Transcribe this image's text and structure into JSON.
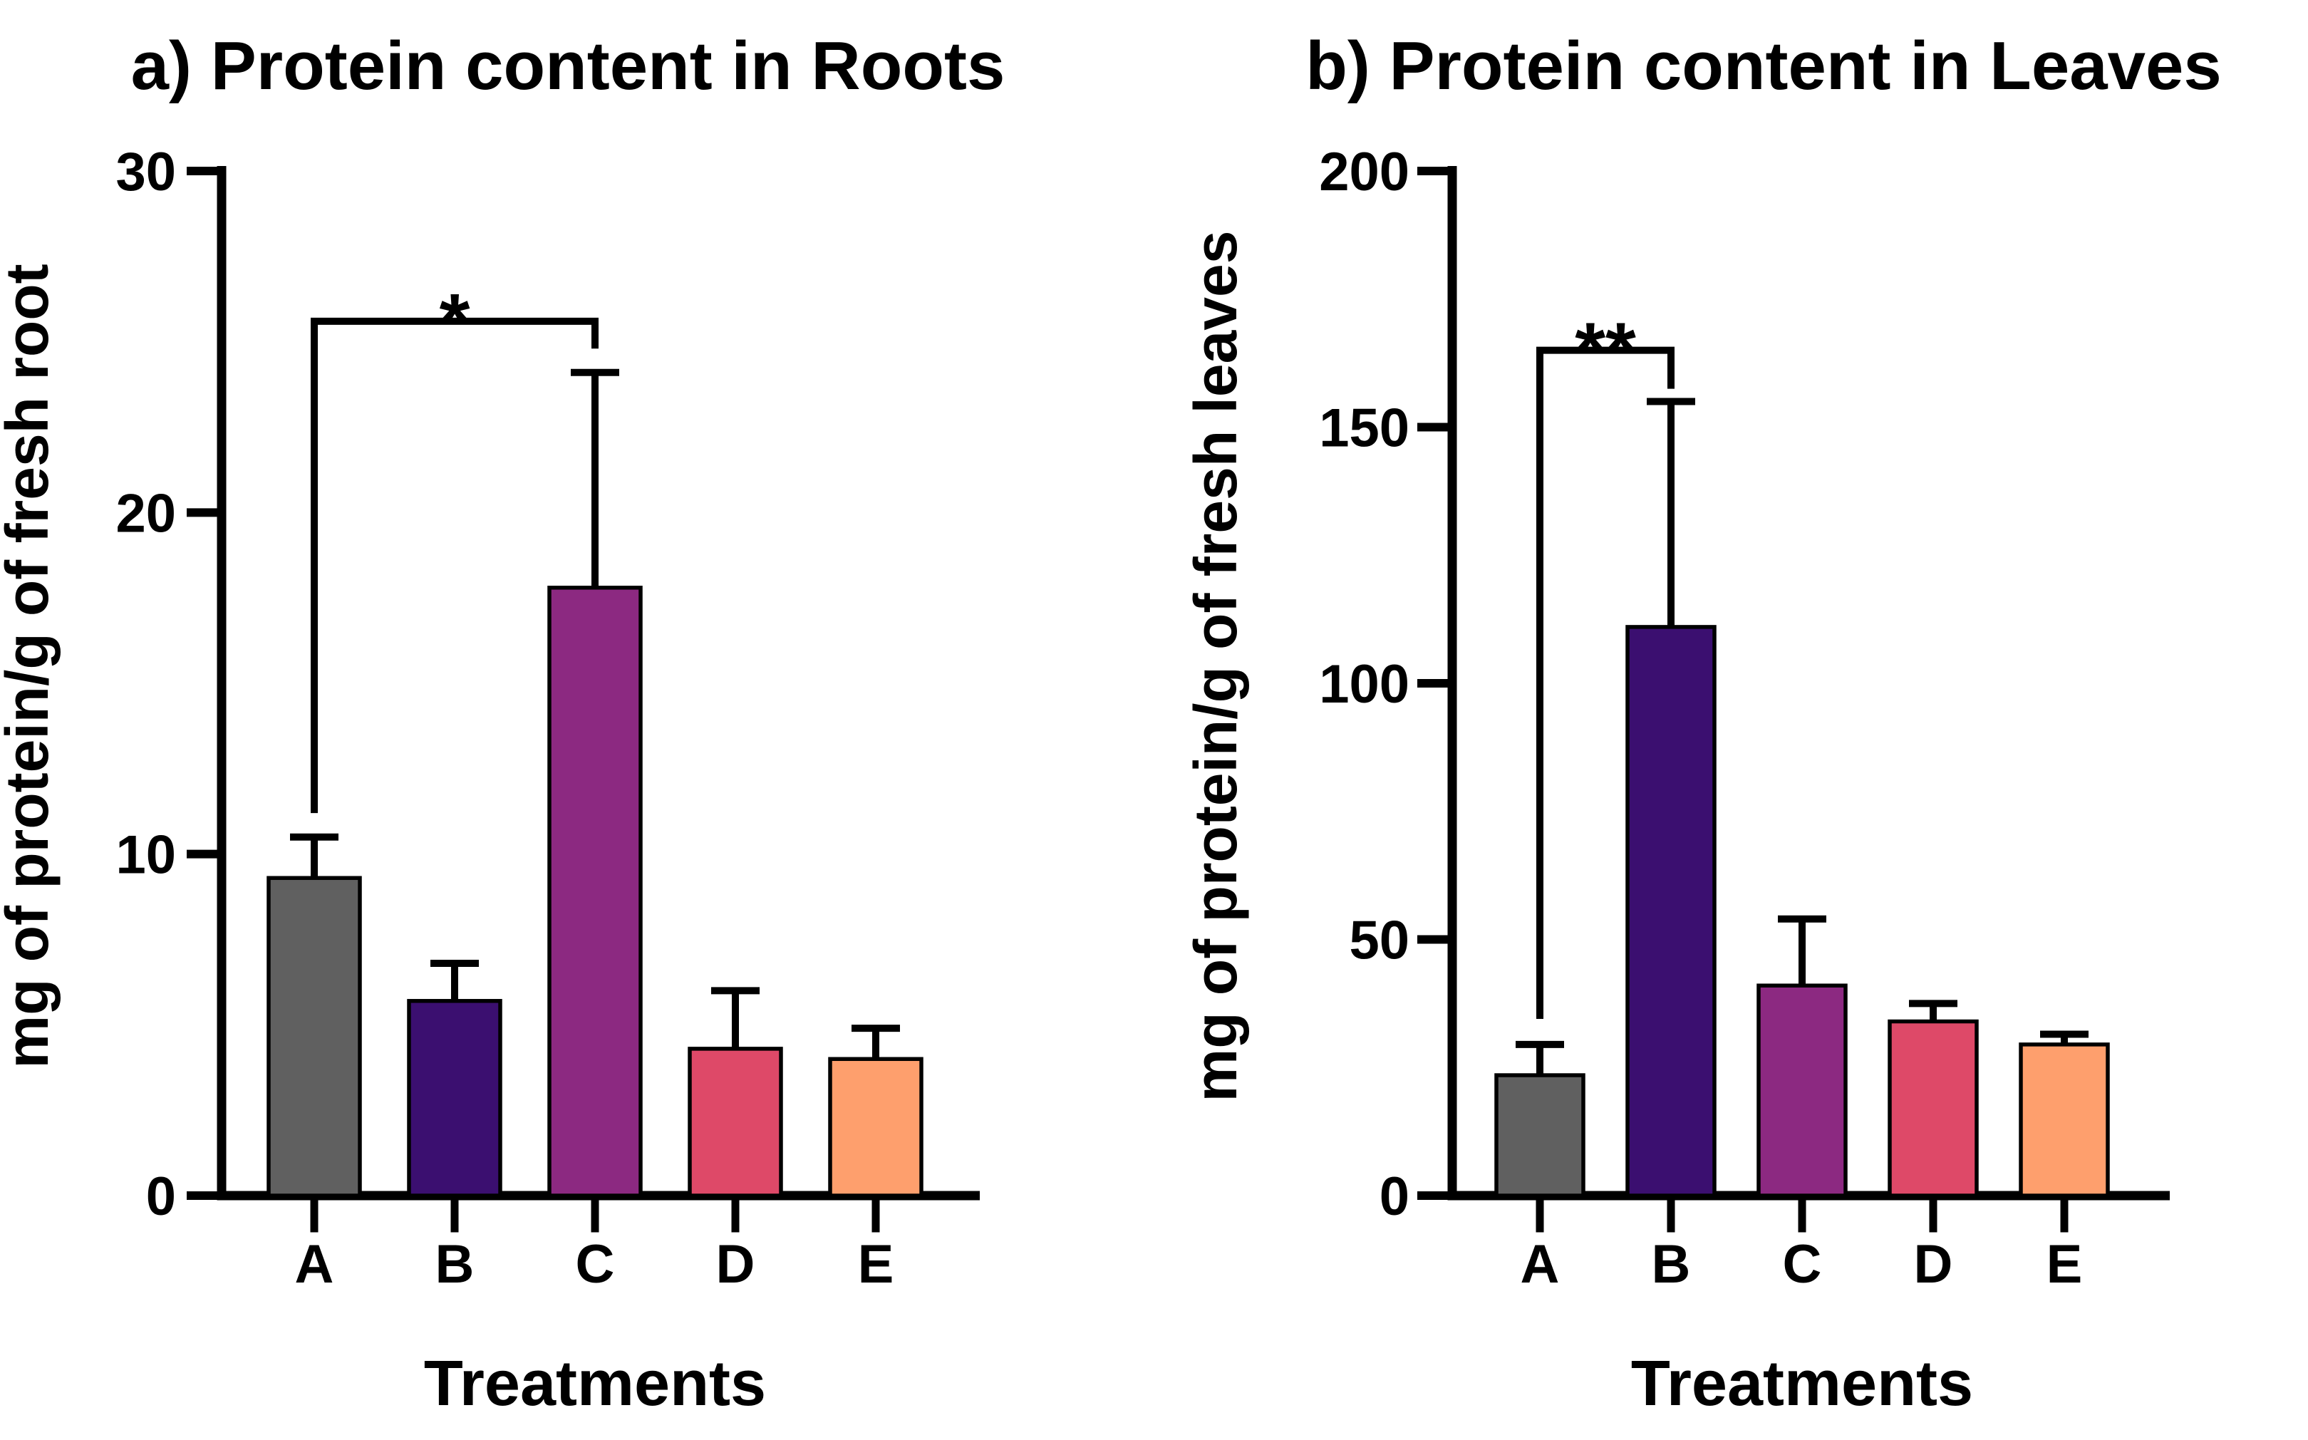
{
  "figure": {
    "background": "#FFFFFF",
    "text_color": "#000000"
  },
  "chart_data": [
    {
      "panel": "a",
      "type": "bar",
      "title": "a) Protein content in Roots",
      "xlabel": "Treatments",
      "ylabel": "mg of protein/g of fresh root",
      "categories": [
        "A",
        "B",
        "C",
        "D",
        "E"
      ],
      "values": [
        9.3,
        5.7,
        17.8,
        4.3,
        4.0
      ],
      "errors_up": [
        1.2,
        1.1,
        6.3,
        1.7,
        0.9
      ],
      "bar_colors": [
        "#606060",
        "#3B0F70",
        "#8C2981",
        "#DE4968",
        "#FE9F6D"
      ],
      "bar_edge_color": "#000000",
      "ylim": [
        0,
        30
      ],
      "yticks": [
        0,
        10,
        20,
        30
      ],
      "grid": false,
      "legend": "none",
      "significance": {
        "label": "*",
        "from": "A",
        "to": "C",
        "bracket_y": 25.6,
        "left_drop_to": 11.2,
        "right_drop_to": 24.8
      }
    },
    {
      "panel": "b",
      "type": "bar",
      "title": "b) Protein content in Leaves",
      "xlabel": "Treatments",
      "ylabel": "mg of protein/g of fresh leaves",
      "categories": [
        "A",
        "B",
        "C",
        "D",
        "E"
      ],
      "values": [
        23.5,
        111,
        41,
        34,
        29.5
      ],
      "errors_up": [
        6,
        44,
        13,
        3.5,
        2
      ],
      "bar_colors": [
        "#606060",
        "#3B0F70",
        "#8C2981",
        "#DE4968",
        "#FE9F6D"
      ],
      "bar_edge_color": "#000000",
      "ylim": [
        0,
        200
      ],
      "yticks": [
        0,
        50,
        100,
        150,
        200
      ],
      "grid": false,
      "legend": "none",
      "significance": {
        "label": "**",
        "from": "A",
        "to": "B",
        "bracket_y": 165,
        "left_drop_to": 34.5,
        "right_drop_to": 157.5
      }
    }
  ]
}
